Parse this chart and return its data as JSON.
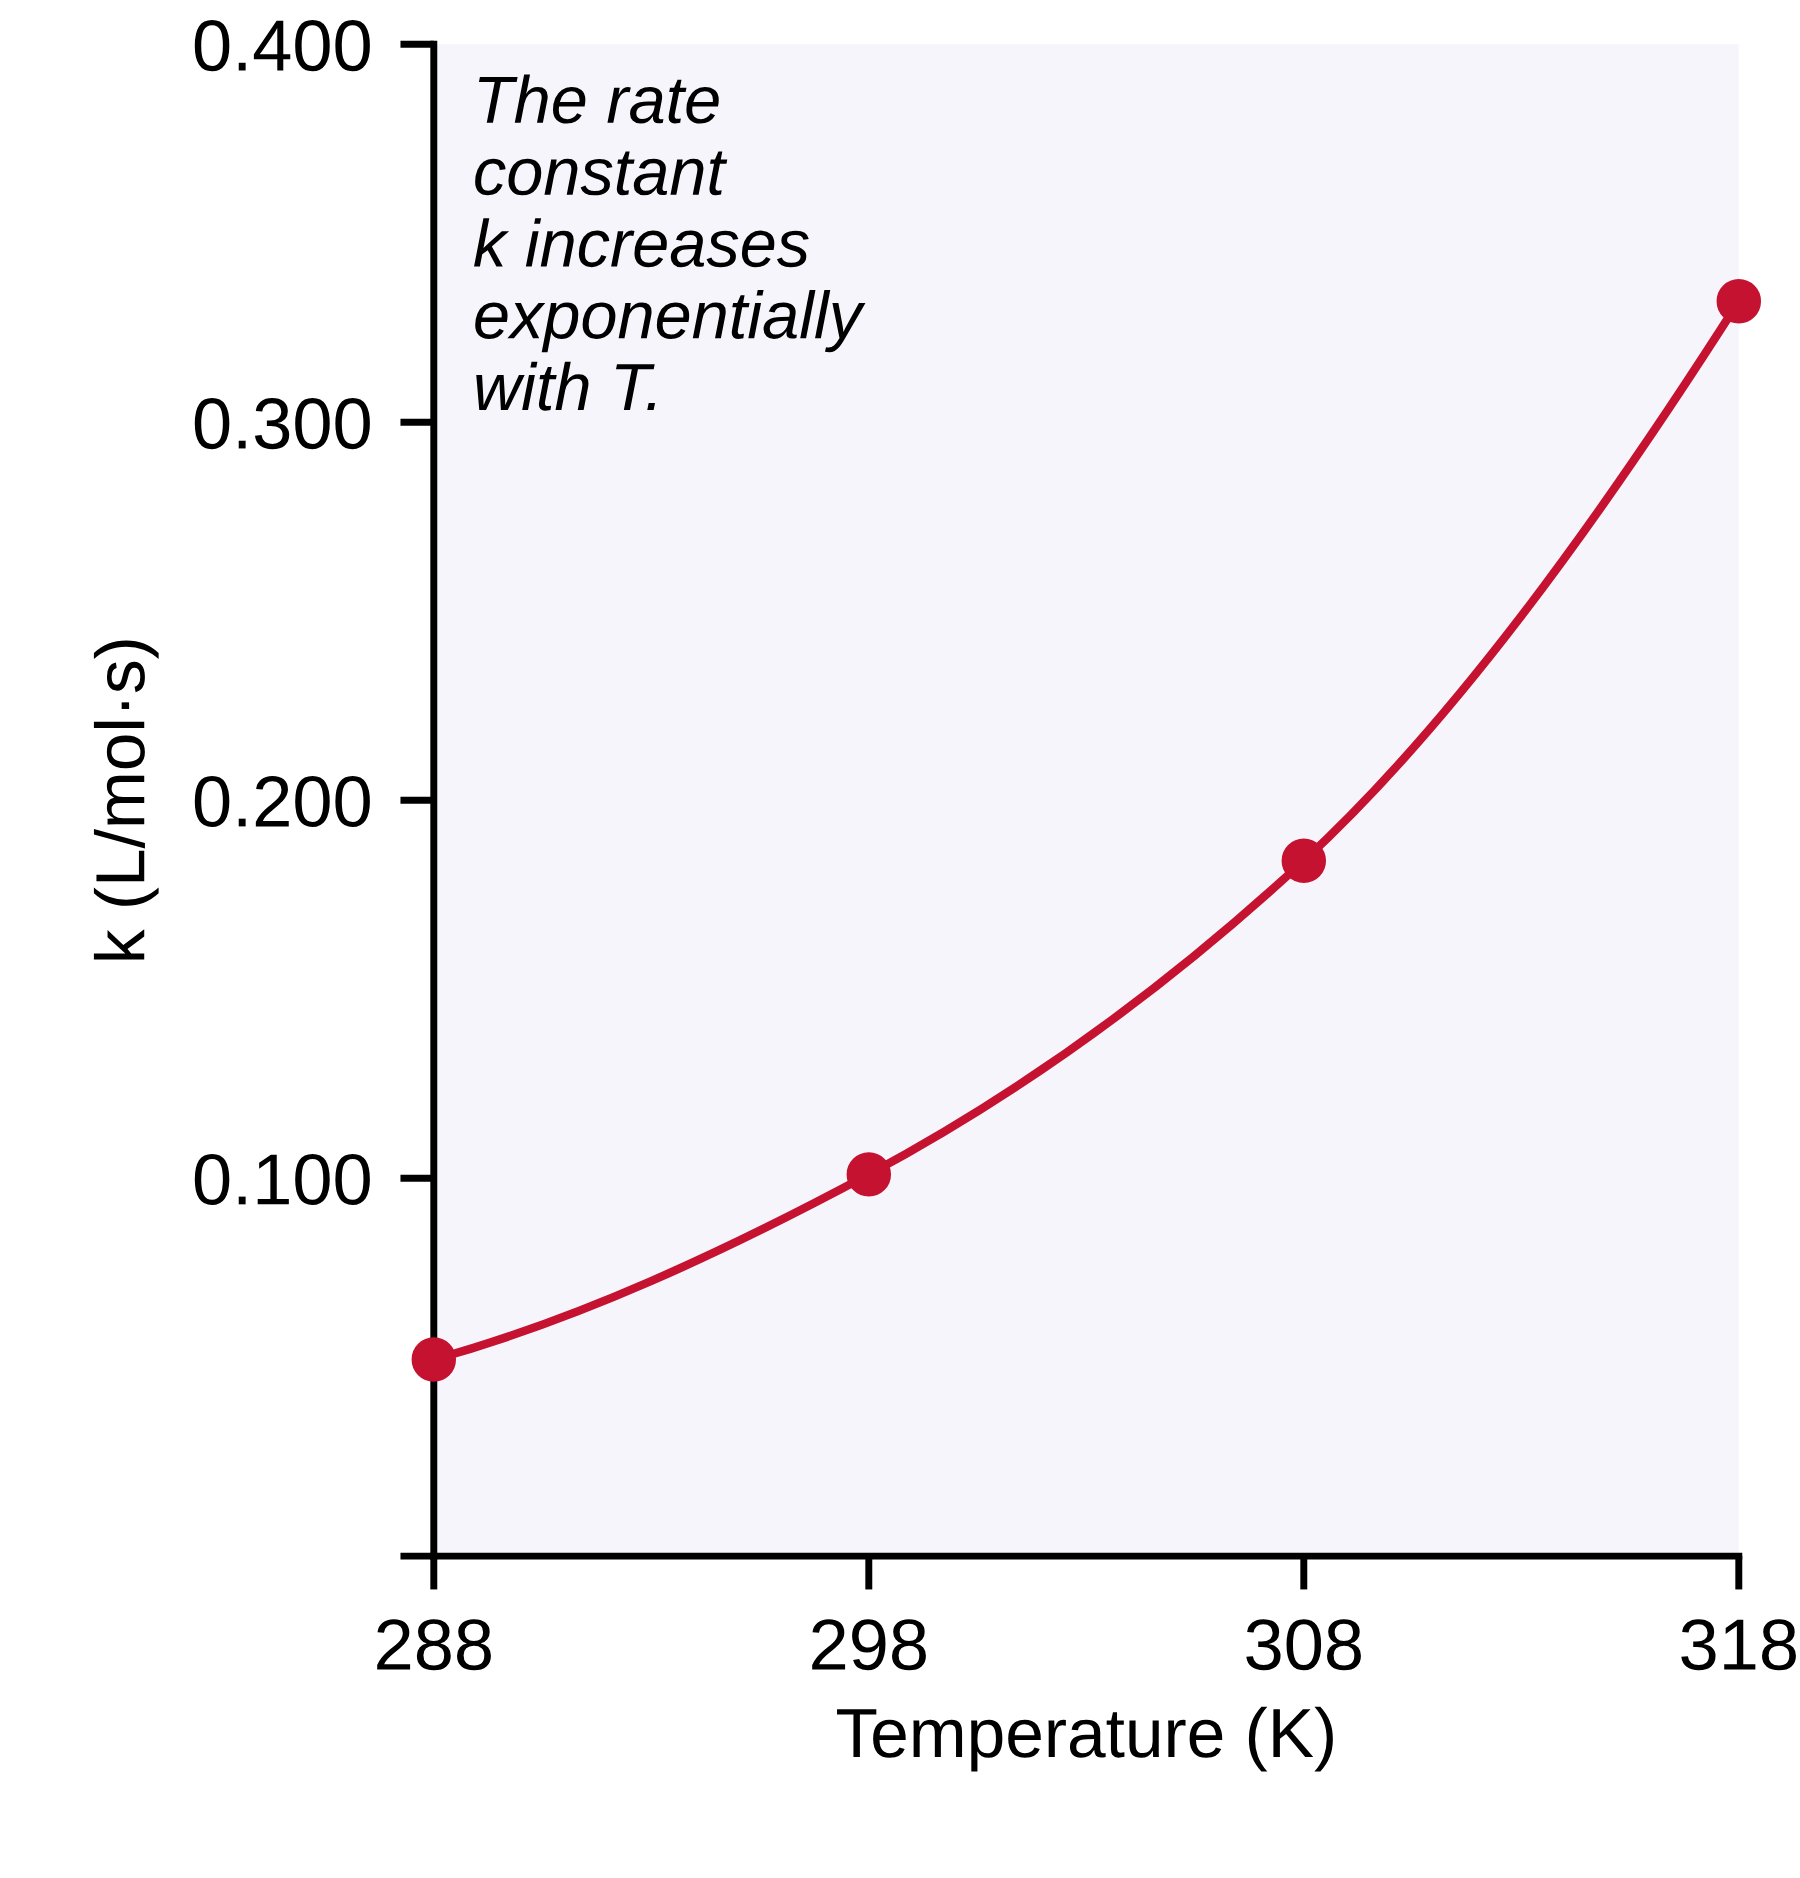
{
  "chart_data": {
    "type": "line",
    "x": [
      288,
      298,
      308,
      318
    ],
    "series": [
      {
        "color": "#c41230",
        "values": [
          0.052,
          0.101,
          0.184,
          0.332
        ]
      }
    ],
    "marker": "circle",
    "line_style": "solid",
    "grid": false,
    "legend": false,
    "xlim": [
      288,
      318
    ],
    "xticks": [
      288,
      298,
      308,
      318
    ],
    "ylim": [
      0,
      0.4
    ],
    "yticks": [
      {
        "value": 0,
        "label": null
      },
      {
        "value": 0.1,
        "label": "0.100"
      },
      {
        "value": 0.2,
        "label": "0.200"
      },
      {
        "value": 0.3,
        "label": "0.300"
      },
      {
        "value": 0.4,
        "label": "0.400"
      }
    ],
    "xlabel": "Temperature (K)",
    "ylabel": "k (L/mol·s)",
    "annotations": [
      "The rate\nconstant\nk increases\nexponentially\nwith T."
    ]
  }
}
